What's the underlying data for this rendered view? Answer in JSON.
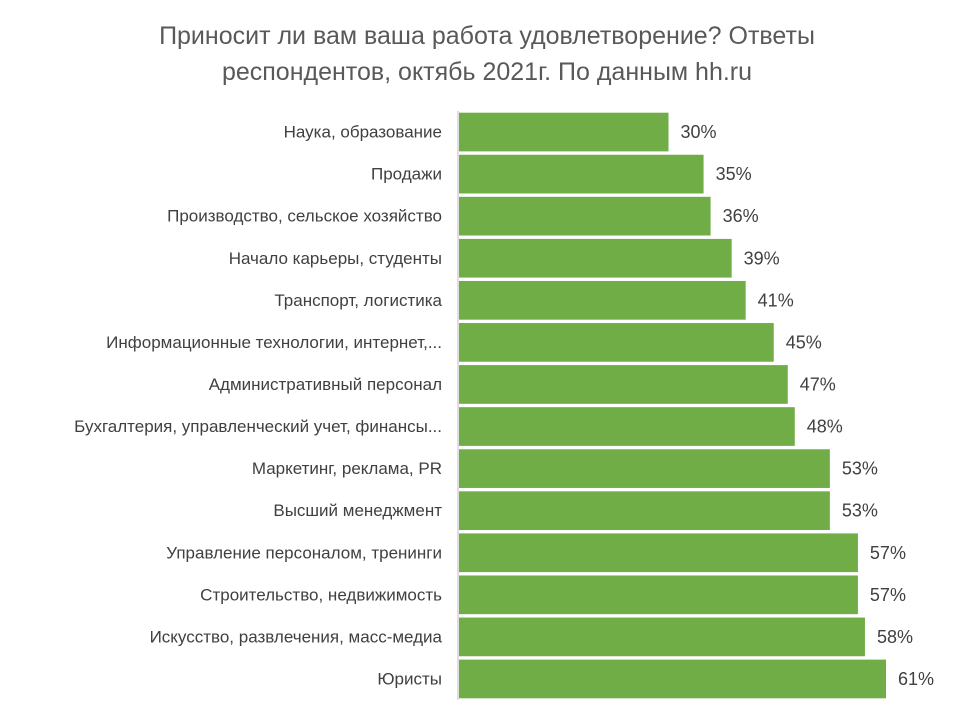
{
  "chart_data": {
    "type": "bar",
    "orientation": "horizontal",
    "title": [
      "Приносит ли вам ваша работа удовлетворение? Ответы",
      "респондентов, октябь 2021г. По данным hh.ru"
    ],
    "categories": [
      "Наука, образование",
      "Продажи",
      "Производство, сельское хозяйство",
      "Начало карьеры, студенты",
      "Транспорт, логистика",
      "Информационные технологии, интернет,...",
      "Административный персонал",
      "Бухгалтерия, управленческий учет, финансы...",
      "Маркетинг, реклама, PR",
      "Высший менеджмент",
      "Управление персоналом, тренинги",
      "Строительство, недвижимость",
      "Искусство, развлечения, масс-медиа",
      "Юристы"
    ],
    "values": [
      30,
      35,
      36,
      39,
      41,
      45,
      47,
      48,
      53,
      53,
      57,
      57,
      58,
      61
    ],
    "value_labels": [
      "30%",
      "35%",
      "36%",
      "39%",
      "41%",
      "45%",
      "47%",
      "48%",
      "53%",
      "53%",
      "57%",
      "57%",
      "58%",
      "61%"
    ],
    "xlim": [
      0,
      61
    ],
    "bar_color": "#70ad47",
    "axis_color": "#bfbfbf",
    "grid": false,
    "legend": "none"
  }
}
